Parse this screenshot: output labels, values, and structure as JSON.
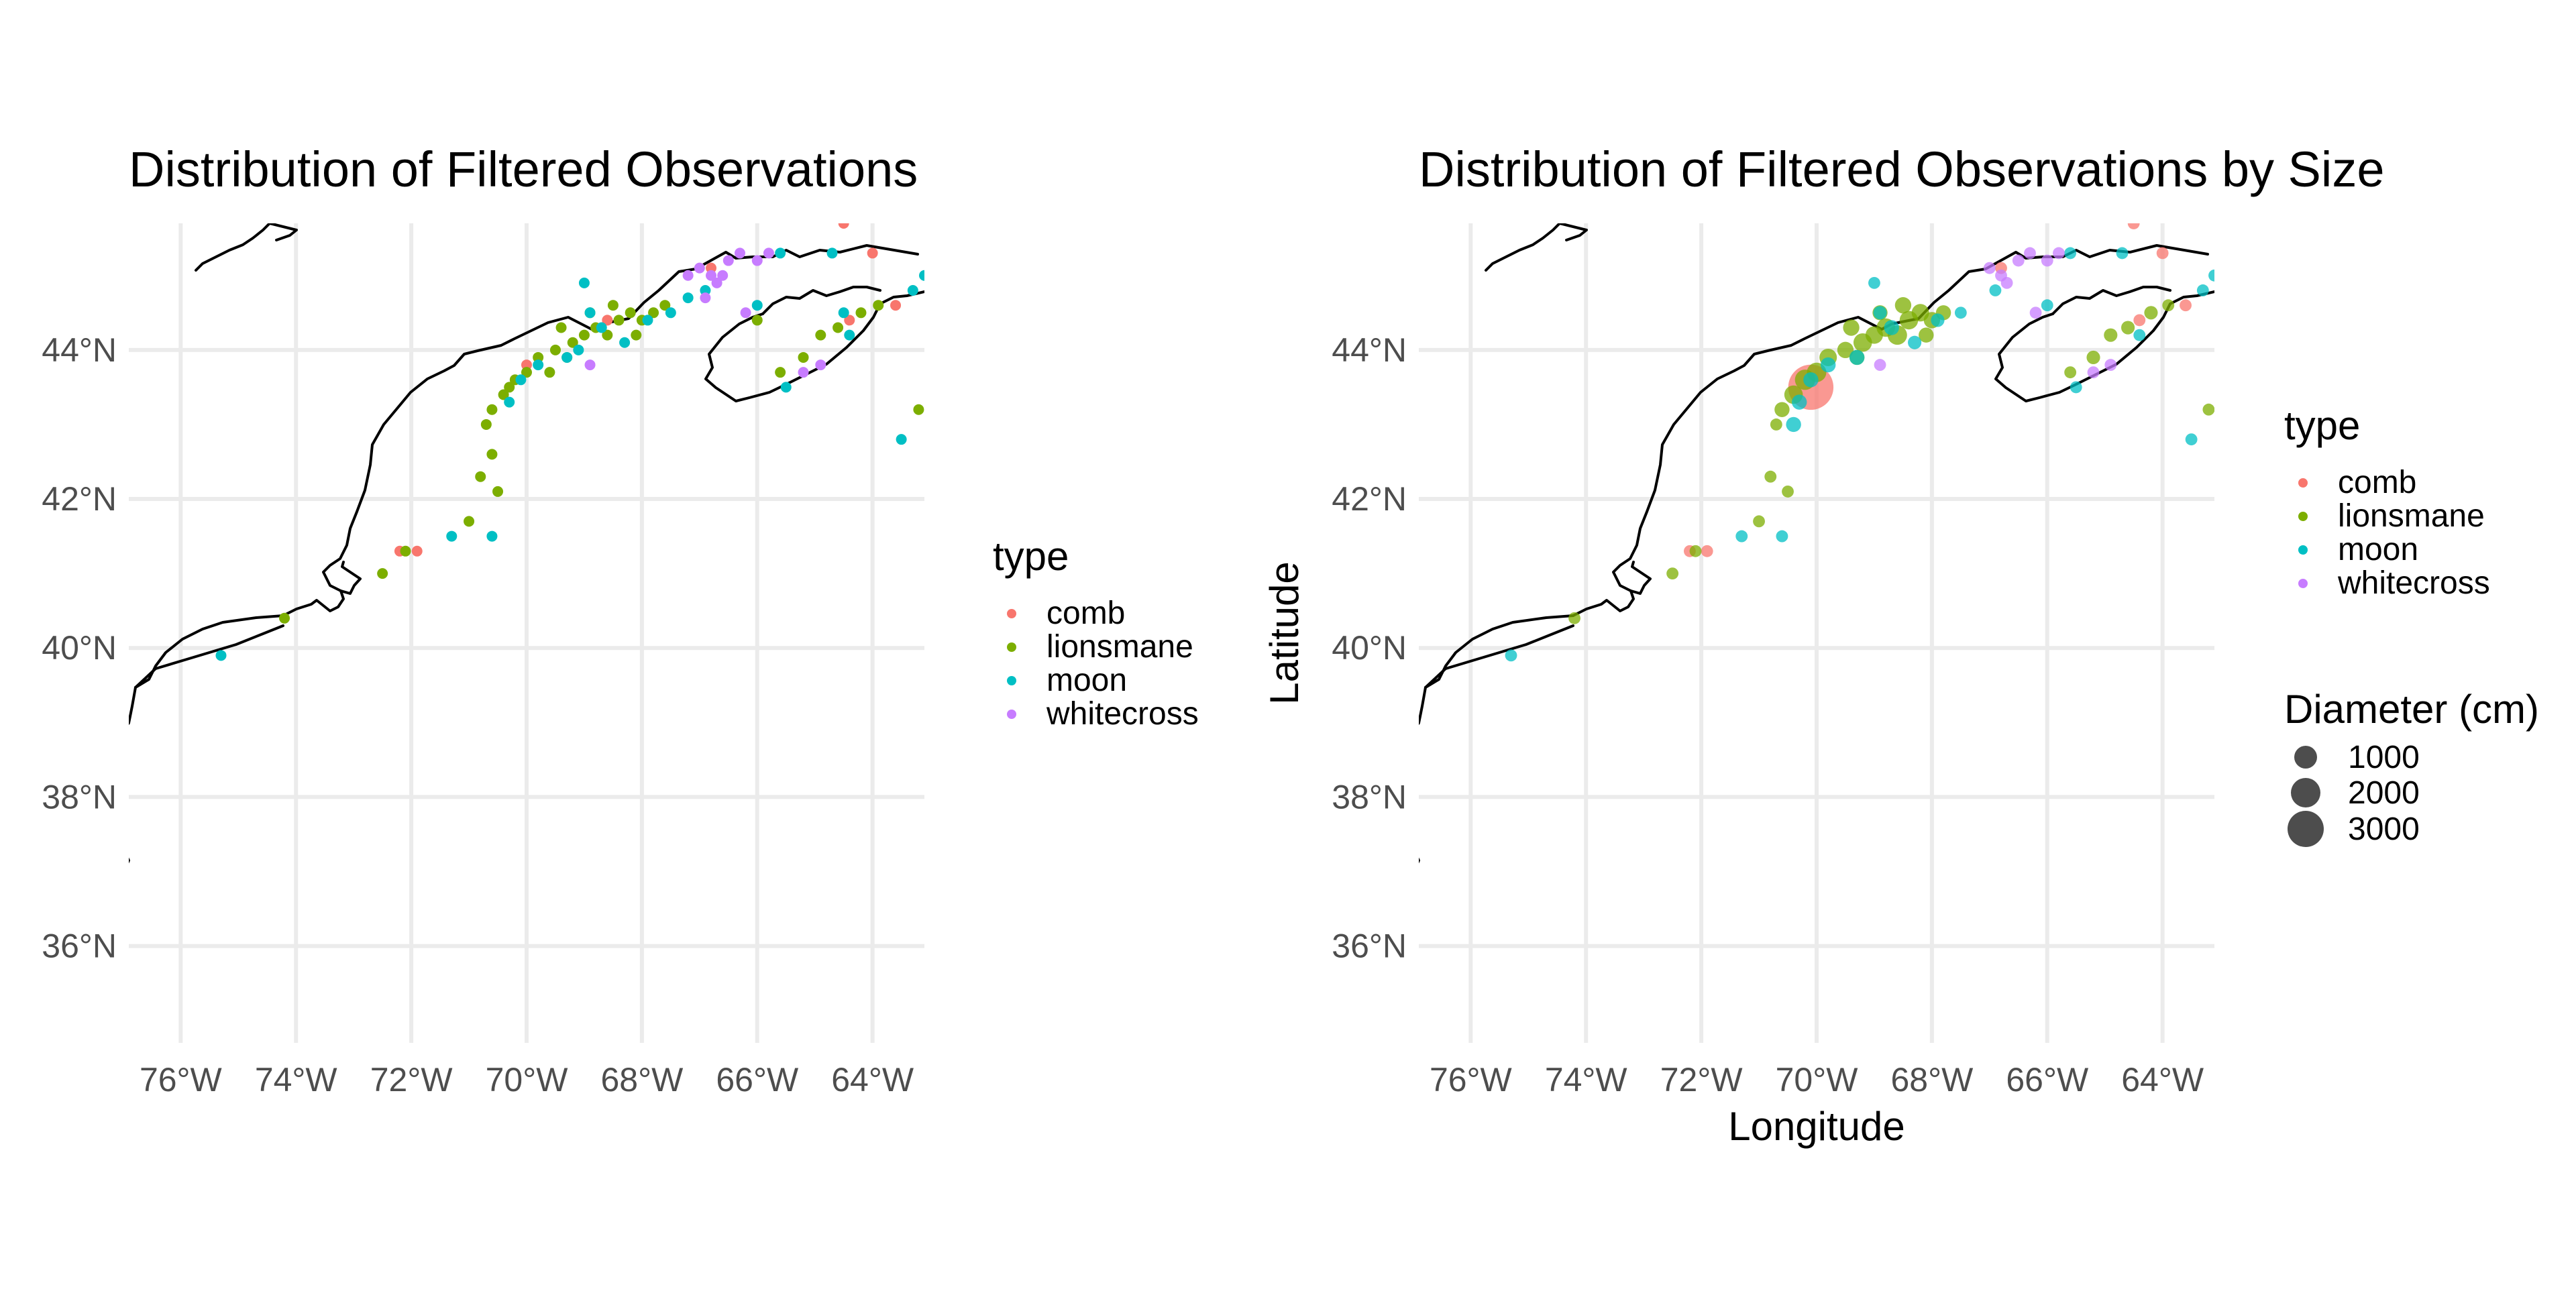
{
  "colors": {
    "comb": "#F8766D",
    "lionsmane": "#7CAE00",
    "moon": "#00BFC4",
    "whitecross": "#C77CFF",
    "size_key": "#4d4d4d"
  },
  "chart_data": [
    {
      "type": "scatter",
      "panel": "left",
      "title": "Distribution of Filtered Observations",
      "xlabel": "",
      "ylabel": "",
      "xlim": [
        -76.9,
        -63.1
      ],
      "ylim": [
        34.7,
        45.7
      ],
      "x_ticks": [
        -76,
        -74,
        -72,
        -70,
        -68,
        -66,
        -64
      ],
      "x_tick_labels": [
        "76°W",
        "74°W",
        "72°W",
        "70°W",
        "68°W",
        "66°W",
        "64°W"
      ],
      "y_ticks": [
        36,
        38,
        40,
        42,
        44
      ],
      "y_tick_labels": [
        "36°N",
        "38°N",
        "40°N",
        "42°N",
        "44°N"
      ],
      "grid": true,
      "legend": {
        "title": "type",
        "placement": "right",
        "entries": [
          "comb",
          "lionsmane",
          "moon",
          "whitecross"
        ]
      },
      "series": [
        {
          "name": "comb",
          "points": [
            [
              -71.9,
              41.3
            ],
            [
              -72.2,
              41.3
            ],
            [
              -70.0,
              43.8
            ],
            [
              -68.6,
              44.4
            ],
            [
              -64.4,
              44.4
            ],
            [
              -63.6,
              44.6
            ],
            [
              -66.8,
              45.1
            ],
            [
              -64.0,
              45.3
            ],
            [
              -64.5,
              45.7
            ]
          ]
        },
        {
          "name": "lionsmane",
          "points": [
            [
              -74.2,
              40.4
            ],
            [
              -72.5,
              41.0
            ],
            [
              -72.1,
              41.3
            ],
            [
              -71.0,
              41.7
            ],
            [
              -70.8,
              42.3
            ],
            [
              -70.6,
              42.6
            ],
            [
              -70.5,
              42.1
            ],
            [
              -70.7,
              43.0
            ],
            [
              -70.6,
              43.2
            ],
            [
              -70.4,
              43.4
            ],
            [
              -70.2,
              43.6
            ],
            [
              -70.0,
              43.7
            ],
            [
              -69.8,
              43.9
            ],
            [
              -69.5,
              44.0
            ],
            [
              -69.2,
              44.1
            ],
            [
              -69.0,
              44.2
            ],
            [
              -68.8,
              44.3
            ],
            [
              -68.6,
              44.2
            ],
            [
              -68.4,
              44.4
            ],
            [
              -68.2,
              44.5
            ],
            [
              -68.0,
              44.4
            ],
            [
              -67.8,
              44.5
            ],
            [
              -68.5,
              44.6
            ],
            [
              -68.9,
              44.5
            ],
            [
              -69.3,
              43.9
            ],
            [
              -69.6,
              43.7
            ],
            [
              -68.1,
              44.2
            ],
            [
              -67.6,
              44.6
            ],
            [
              -66.0,
              44.4
            ],
            [
              -65.6,
              43.7
            ],
            [
              -65.2,
              43.9
            ],
            [
              -64.9,
              44.2
            ],
            [
              -64.6,
              44.3
            ],
            [
              -64.2,
              44.5
            ],
            [
              -63.9,
              44.6
            ],
            [
              -63.2,
              43.2
            ],
            [
              -70.3,
              43.5
            ],
            [
              -69.4,
              44.3
            ]
          ]
        },
        {
          "name": "moon",
          "points": [
            [
              -75.3,
              39.9
            ],
            [
              -71.3,
              41.5
            ],
            [
              -70.6,
              41.5
            ],
            [
              -70.3,
              43.3
            ],
            [
              -70.1,
              43.6
            ],
            [
              -69.8,
              43.8
            ],
            [
              -69.3,
              43.9
            ],
            [
              -69.1,
              44.0
            ],
            [
              -68.9,
              44.5
            ],
            [
              -68.7,
              44.3
            ],
            [
              -68.3,
              44.1
            ],
            [
              -67.9,
              44.4
            ],
            [
              -67.5,
              44.5
            ],
            [
              -67.2,
              44.7
            ],
            [
              -66.9,
              44.8
            ],
            [
              -66.0,
              44.6
            ],
            [
              -65.5,
              43.5
            ],
            [
              -64.4,
              44.2
            ],
            [
              -63.3,
              44.8
            ],
            [
              -63.5,
              42.8
            ],
            [
              -69.0,
              44.9
            ],
            [
              -64.7,
              45.3
            ],
            [
              -65.6,
              45.3
            ],
            [
              -63.1,
              45.0
            ],
            [
              -64.5,
              44.5
            ]
          ]
        },
        {
          "name": "whitecross",
          "points": [
            [
              -67.0,
              45.1
            ],
            [
              -66.8,
              45.0
            ],
            [
              -66.7,
              44.9
            ],
            [
              -66.9,
              44.7
            ],
            [
              -66.5,
              45.2
            ],
            [
              -66.3,
              45.3
            ],
            [
              -66.0,
              45.2
            ],
            [
              -65.8,
              45.3
            ],
            [
              -67.2,
              45.0
            ],
            [
              -68.9,
              43.8
            ],
            [
              -66.2,
              44.5
            ],
            [
              -64.9,
              43.8
            ],
            [
              -65.2,
              43.7
            ],
            [
              -66.6,
              45.0
            ]
          ]
        }
      ]
    },
    {
      "type": "scatter",
      "panel": "right",
      "title": "Distribution of Filtered Observations by Size",
      "xlabel": "Longitude",
      "ylabel": "Latitude",
      "xlim": [
        -76.9,
        -63.1
      ],
      "ylim": [
        34.7,
        45.7
      ],
      "x_ticks": [
        -76,
        -74,
        -72,
        -70,
        -68,
        -66,
        -64
      ],
      "x_tick_labels": [
        "76°W",
        "74°W",
        "72°W",
        "70°W",
        "68°W",
        "66°W",
        "64°W"
      ],
      "y_ticks": [
        36,
        38,
        40,
        42,
        44
      ],
      "y_tick_labels": [
        "36°N",
        "38°N",
        "40°N",
        "42°N",
        "44°N"
      ],
      "grid": true,
      "legend": {
        "title": "type",
        "placement": "right",
        "entries": [
          "comb",
          "lionsmane",
          "moon",
          "whitecross"
        ]
      },
      "size_legend": {
        "title": "Diameter (cm)",
        "entries": [
          1000,
          2000,
          3000
        ]
      },
      "series": [
        {
          "name": "comb",
          "points": [
            [
              -71.9,
              41.3,
              60
            ],
            [
              -72.2,
              41.3,
              60
            ],
            [
              -70.1,
              43.5,
              3200
            ],
            [
              -64.4,
              44.4,
              60
            ],
            [
              -63.6,
              44.6,
              60
            ],
            [
              -66.8,
              45.1,
              60
            ],
            [
              -64.0,
              45.3,
              60
            ],
            [
              -64.5,
              45.7,
              60
            ]
          ]
        },
        {
          "name": "lionsmane",
          "points": [
            [
              -74.2,
              40.4,
              60
            ],
            [
              -72.5,
              41.0,
              60
            ],
            [
              -72.1,
              41.3,
              60
            ],
            [
              -71.0,
              41.7,
              60
            ],
            [
              -70.8,
              42.3,
              60
            ],
            [
              -70.5,
              42.1,
              60
            ],
            [
              -70.7,
              43.0,
              60
            ],
            [
              -70.4,
              43.4,
              300
            ],
            [
              -70.2,
              43.6,
              400
            ],
            [
              -70.0,
              43.7,
              350
            ],
            [
              -69.8,
              43.9,
              250
            ],
            [
              -69.5,
              44.0,
              200
            ],
            [
              -69.2,
              44.1,
              300
            ],
            [
              -69.0,
              44.2,
              250
            ],
            [
              -68.8,
              44.3,
              300
            ],
            [
              -68.6,
              44.2,
              350
            ],
            [
              -68.4,
              44.4,
              300
            ],
            [
              -68.2,
              44.5,
              250
            ],
            [
              -68.0,
              44.4,
              200
            ],
            [
              -67.8,
              44.5,
              150
            ],
            [
              -68.5,
              44.6,
              200
            ],
            [
              -68.9,
              44.5,
              150
            ],
            [
              -69.3,
              43.9,
              150
            ],
            [
              -68.1,
              44.2,
              150
            ],
            [
              -65.6,
              43.7,
              60
            ],
            [
              -65.2,
              43.9,
              100
            ],
            [
              -64.9,
              44.2,
              100
            ],
            [
              -64.6,
              44.3,
              100
            ],
            [
              -64.2,
              44.5,
              100
            ],
            [
              -63.9,
              44.6,
              60
            ],
            [
              -63.2,
              43.2,
              60
            ],
            [
              -70.6,
              43.2,
              150
            ],
            [
              -69.4,
              44.3,
              200
            ]
          ]
        },
        {
          "name": "moon",
          "points": [
            [
              -75.3,
              39.9,
              60
            ],
            [
              -71.3,
              41.5,
              60
            ],
            [
              -70.6,
              41.5,
              60
            ],
            [
              -70.3,
              43.3,
              150
            ],
            [
              -70.1,
              43.6,
              150
            ],
            [
              -69.8,
              43.8,
              150
            ],
            [
              -69.3,
              43.9,
              150
            ],
            [
              -68.9,
              44.5,
              100
            ],
            [
              -68.7,
              44.3,
              150
            ],
            [
              -68.3,
              44.1,
              100
            ],
            [
              -67.9,
              44.4,
              100
            ],
            [
              -67.5,
              44.5,
              60
            ],
            [
              -66.9,
              44.8,
              60
            ],
            [
              -66.0,
              44.6,
              60
            ],
            [
              -65.5,
              43.5,
              60
            ],
            [
              -64.4,
              44.2,
              60
            ],
            [
              -63.3,
              44.8,
              60
            ],
            [
              -63.5,
              42.8,
              60
            ],
            [
              -69.0,
              44.9,
              60
            ],
            [
              -64.7,
              45.3,
              60
            ],
            [
              -65.6,
              45.3,
              60
            ],
            [
              -63.1,
              45.0,
              60
            ],
            [
              -70.4,
              43.0,
              150
            ]
          ]
        },
        {
          "name": "whitecross",
          "points": [
            [
              -67.0,
              45.1,
              60
            ],
            [
              -66.8,
              45.0,
              60
            ],
            [
              -66.7,
              44.9,
              60
            ],
            [
              -66.5,
              45.2,
              60
            ],
            [
              -66.3,
              45.3,
              60
            ],
            [
              -66.0,
              45.2,
              60
            ],
            [
              -65.8,
              45.3,
              60
            ],
            [
              -68.9,
              43.8,
              60
            ],
            [
              -66.2,
              44.5,
              60
            ],
            [
              -64.9,
              43.8,
              60
            ],
            [
              -65.2,
              43.7,
              60
            ]
          ]
        }
      ]
    }
  ]
}
